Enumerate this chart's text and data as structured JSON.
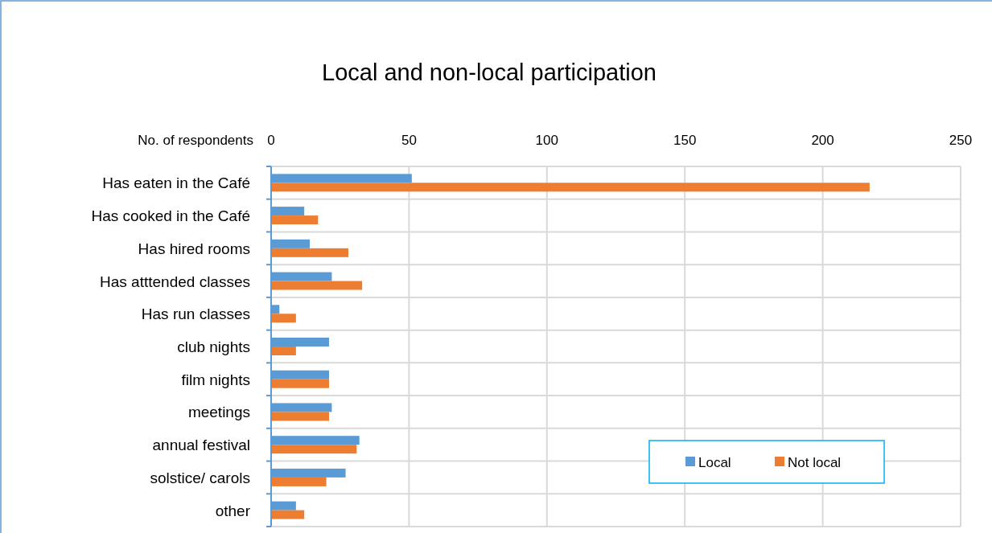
{
  "chart_data": {
    "type": "bar",
    "orientation": "horizontal",
    "title": "Local and non-local participation",
    "xlabel": "No. of respondents",
    "categories": [
      "Has eaten in the Café",
      "Has cooked in the Café",
      "Has hired rooms",
      "Has atttended classes",
      "Has run classes",
      "club nights",
      "film nights",
      "meetings",
      "annual festival",
      "solstice/ carols",
      "other"
    ],
    "series": [
      {
        "name": "Local",
        "color": "#5b9bd5",
        "values": [
          51,
          12,
          14,
          22,
          3,
          21,
          21,
          22,
          32,
          27,
          9
        ]
      },
      {
        "name": "Not local",
        "color": "#ed7d31",
        "values": [
          217,
          17,
          28,
          33,
          9,
          9,
          21,
          21,
          31,
          20,
          12
        ]
      }
    ],
    "xlim": [
      0,
      250
    ],
    "xticks": [
      0,
      50,
      100,
      150,
      200,
      250
    ],
    "grid": true,
    "legend": "bottom right"
  }
}
